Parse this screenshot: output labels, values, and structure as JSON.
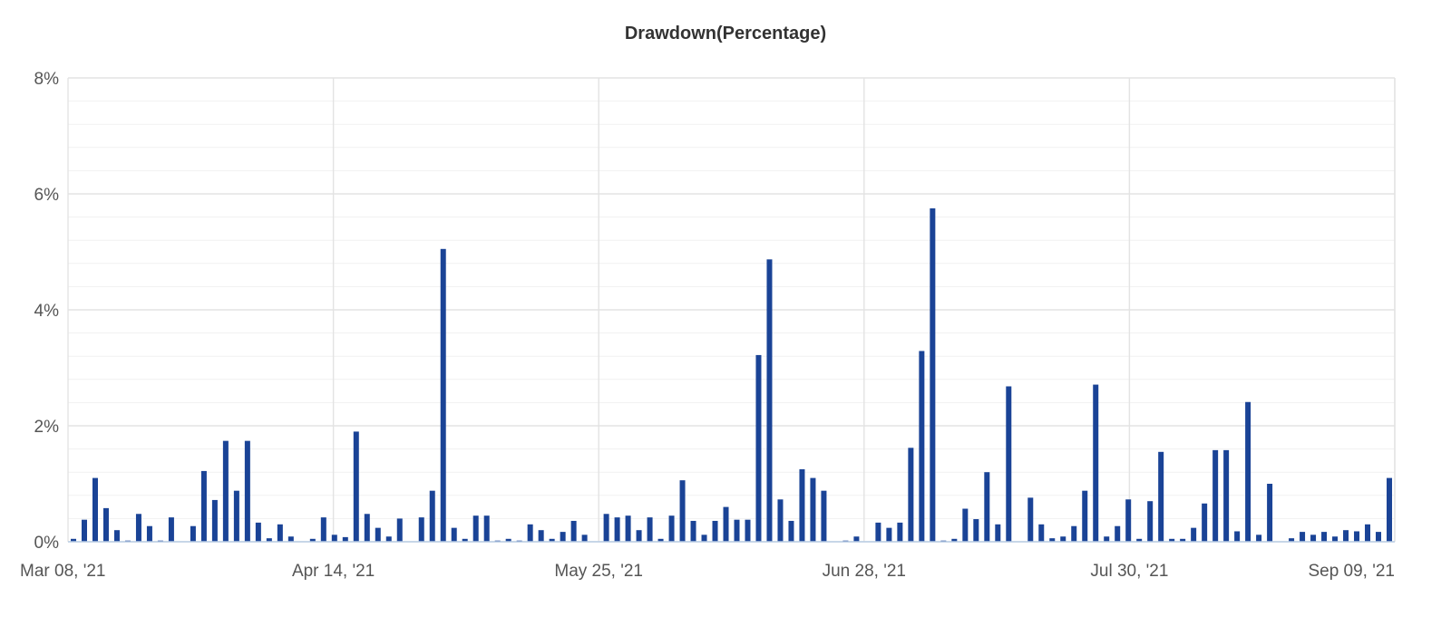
{
  "chart_data": {
    "type": "bar",
    "title": "Drawdown(Percentage)",
    "xlabel": "",
    "ylabel": "",
    "ylim": [
      0,
      8
    ],
    "y_ticks": [
      "0%",
      "2%",
      "4%",
      "6%",
      "8%"
    ],
    "x_ticks": [
      "Mar 08, '21",
      "Apr 14, '21",
      "May 25, '21",
      "Jun 28, '21",
      "Jul 30, '21",
      "Sep 09, '21"
    ],
    "grid": true,
    "colors": {
      "bar": "#1a4396",
      "grid": "#e6e6e6",
      "axis": "#c0d0e0"
    },
    "values": [
      0.05,
      0.38,
      1.1,
      0.58,
      0.2,
      0.02,
      0.48,
      0.27,
      0.02,
      0.42,
      0,
      0.27,
      1.22,
      0.72,
      1.74,
      0.88,
      1.74,
      0.33,
      0.06,
      0.3,
      0.09,
      0,
      0.05,
      0.42,
      0.12,
      0.08,
      1.9,
      0.48,
      0.24,
      0.09,
      0.4,
      0,
      0.42,
      0.88,
      5.05,
      0.24,
      0.05,
      0.45,
      0.45,
      0.02,
      0.05,
      0.02,
      0.3,
      0.2,
      0.05,
      0.17,
      0.36,
      0.12,
      0,
      0.48,
      0.42,
      0.45,
      0.2,
      0.42,
      0.05,
      0.45,
      1.06,
      0.36,
      0.12,
      0.36,
      0.6,
      0.38,
      0.38,
      3.22,
      4.87,
      0.73,
      0.36,
      1.25,
      1.1,
      0.88,
      0,
      0.02,
      0.09,
      0,
      0.33,
      0.24,
      0.33,
      1.62,
      3.29,
      5.75,
      0.02,
      0.05,
      0.57,
      0.39,
      1.2,
      0.3,
      2.68,
      0,
      0.76,
      0.3,
      0.06,
      0.09,
      0.27,
      0.88,
      2.71,
      0.09,
      0.27,
      0.73,
      0.05,
      0.7,
      1.55,
      0.05,
      0.05,
      0.24,
      0.66,
      1.58,
      1.58,
      0.18,
      2.41,
      0.12,
      1.0,
      0,
      0.06,
      0.17,
      0.12,
      0.17,
      0.09,
      0.2,
      0.18,
      0.3,
      0.17,
      1.1
    ]
  }
}
